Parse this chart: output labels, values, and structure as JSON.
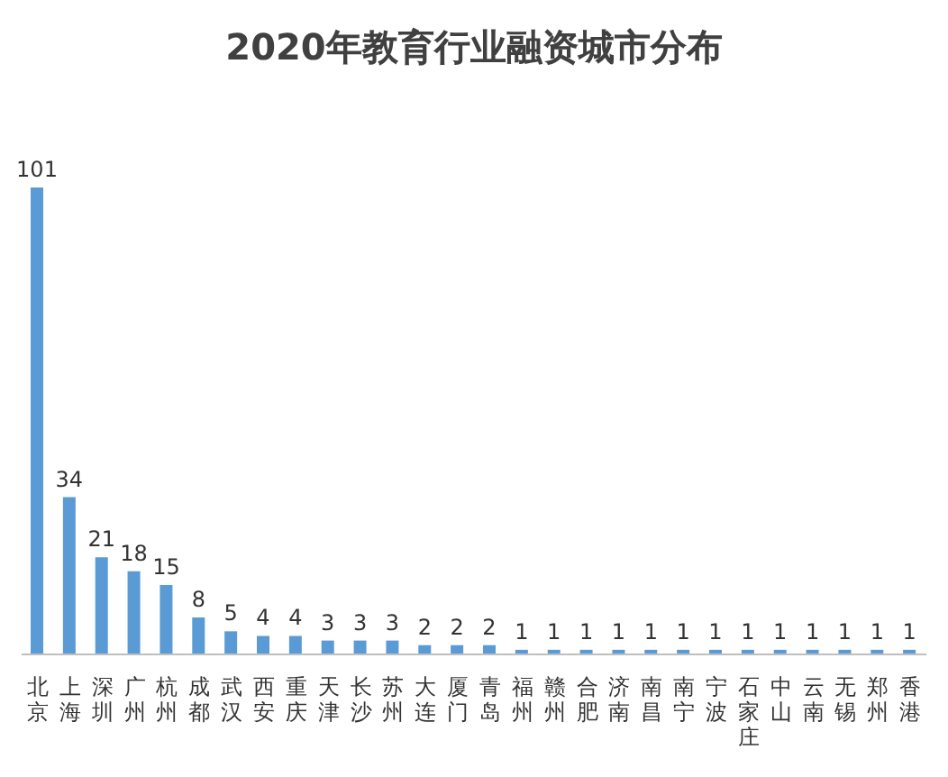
{
  "chart_data": {
    "type": "bar",
    "title": "2020年教育行业融资城市分布",
    "categories": [
      "北京",
      "上海",
      "深圳",
      "广州",
      "杭州",
      "成都",
      "武汉",
      "西安",
      "重庆",
      "天津",
      "长沙",
      "苏州",
      "大连",
      "厦门",
      "青岛",
      "福州",
      "赣州",
      "合肥",
      "济南",
      "南昌",
      "南宁",
      "宁波",
      "石家庄",
      "中山",
      "云南",
      "无锡",
      "郑州",
      "香港"
    ],
    "values": [
      101,
      34,
      21,
      18,
      15,
      8,
      5,
      4,
      4,
      3,
      3,
      3,
      2,
      2,
      2,
      1,
      1,
      1,
      1,
      1,
      1,
      1,
      1,
      1,
      1,
      1,
      1,
      1
    ],
    "color": "#5b9bd5",
    "data_labels": true
  }
}
